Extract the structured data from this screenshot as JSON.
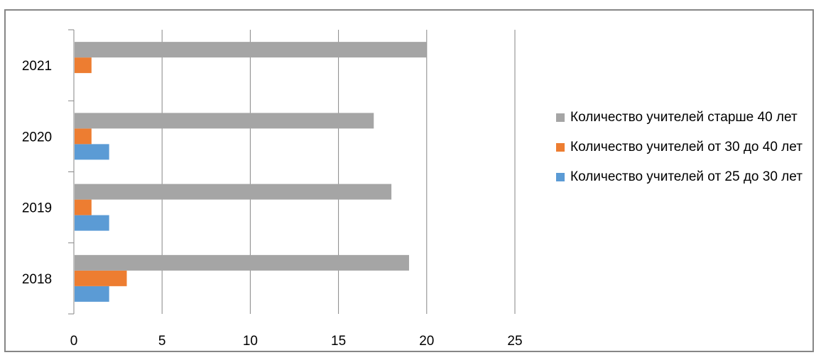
{
  "chart_data": {
    "type": "bar",
    "orientation": "horizontal",
    "categories": [
      "2018",
      "2019",
      "2020",
      "2021"
    ],
    "series": [
      {
        "name": "Количество учителей от 25 до 30 лет",
        "color": "#5b9bd5",
        "values": [
          2,
          2,
          2,
          0
        ]
      },
      {
        "name": "Количество учителей от 30 до 40 лет",
        "color": "#ed7d31",
        "values": [
          3,
          1,
          1,
          1
        ]
      },
      {
        "name": "Количество учителей старше 40 лет",
        "color": "#a5a5a5",
        "values": [
          19,
          18,
          17,
          20
        ]
      }
    ],
    "x_ticks": [
      "0",
      "5",
      "10",
      "15",
      "20",
      "25"
    ],
    "xlim": [
      0,
      25
    ],
    "grid": "vertical",
    "legend_position": "right"
  }
}
